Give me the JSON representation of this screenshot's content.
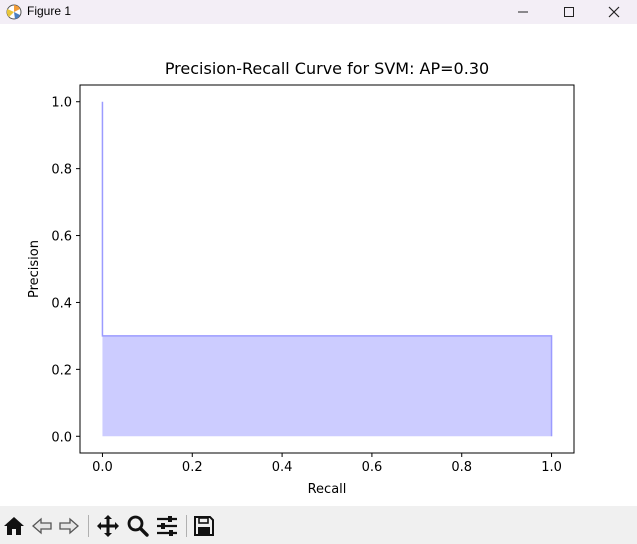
{
  "window": {
    "title": "Figure 1",
    "controls": [
      "minimize-icon",
      "maximize-icon",
      "close-icon"
    ]
  },
  "toolbar": {
    "tools": [
      "home-icon",
      "back-arrow-icon",
      "forward-arrow-icon",
      "pan-icon",
      "zoom-icon",
      "configure-subplots-icon",
      "save-icon"
    ]
  },
  "chart_data": {
    "type": "area",
    "title": "Precision-Recall Curve for SVM: AP=0.30",
    "xlabel": "Recall",
    "ylabel": "Precision",
    "xlim": [
      -0.05,
      1.05
    ],
    "ylim": [
      -0.05,
      1.05
    ],
    "xticks": [
      "0.0",
      "0.2",
      "0.4",
      "0.6",
      "0.8",
      "1.0"
    ],
    "yticks": [
      "0.0",
      "0.2",
      "0.4",
      "0.6",
      "0.8",
      "1.0"
    ],
    "grid": false,
    "series": [
      {
        "x": [
          0.0,
          0.0,
          0.0,
          1.0,
          1.0
        ],
        "y": [
          1.0,
          0.3,
          0.3,
          0.3,
          0.0
        ],
        "step": "post",
        "line_color": "#9b9bff",
        "fill_color": "#ccccff"
      }
    ]
  }
}
